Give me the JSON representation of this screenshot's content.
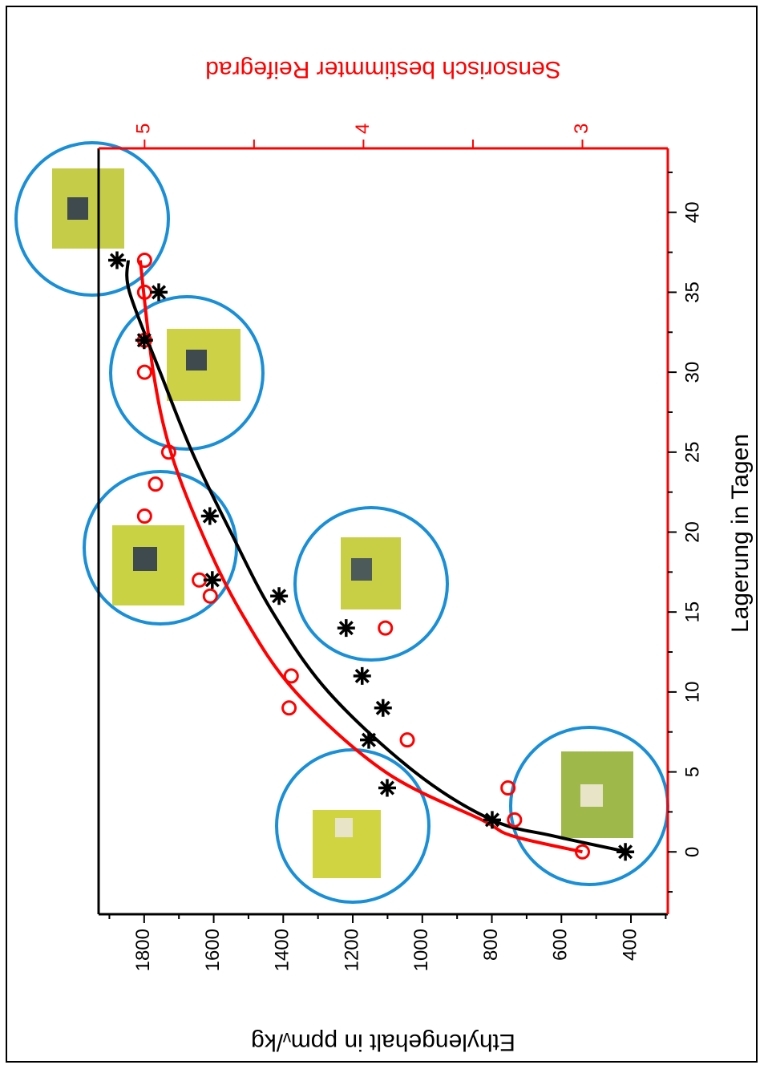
{
  "chart_data": {
    "type": "scatter",
    "x_label": "Lagerung in Tagen",
    "y_label": "Ethylengehalt in ppmᵥ/kg",
    "y2_label": "Sensorisch bestimmter Reifegrad",
    "xlim": [
      -3.9,
      44
    ],
    "xticks": [
      0,
      5,
      10,
      15,
      20,
      25,
      30,
      35,
      40
    ],
    "ylim": [
      294,
      1931
    ],
    "yticks": [
      400,
      600,
      800,
      1000,
      1200,
      1400,
      1600,
      1800
    ],
    "y2lim": [
      2.61,
      5.21
    ],
    "y2ticks": [
      3,
      4,
      5
    ],
    "series": [
      {
        "type": "line",
        "color": "#ff0000",
        "axis": "y2",
        "x": [
          0,
          1,
          2,
          5,
          10,
          15,
          20,
          25,
          30,
          37
        ],
        "values": [
          3.0,
          3.32,
          3.46,
          3.9,
          4.31,
          4.56,
          4.74,
          4.88,
          4.96,
          5.02
        ]
      },
      {
        "type": "line",
        "color": "#000000",
        "x": [
          0,
          1,
          2,
          5,
          10,
          15,
          20,
          25,
          30,
          35,
          37
        ],
        "values": [
          410,
          624,
          800,
          1022,
          1270,
          1431,
          1551,
          1662,
          1754,
          1842,
          1846
        ]
      },
      {
        "type": "scatter",
        "marker": "circle",
        "color": "#ff0000",
        "axis": "y2",
        "x": [
          0,
          2,
          4,
          7,
          9,
          11,
          14,
          16,
          17,
          21,
          23,
          25,
          30,
          32,
          35,
          37
        ],
        "values": [
          3.0,
          3.31,
          3.34,
          3.8,
          4.34,
          4.33,
          3.9,
          4.7,
          4.75,
          5.0,
          4.95,
          4.89,
          5.0,
          5.0,
          5.0,
          5.0
        ]
      },
      {
        "type": "scatter",
        "marker": "star",
        "color": "#000000",
        "x": [
          0,
          2,
          4,
          7,
          9,
          11,
          14,
          16,
          17,
          21,
          32,
          35,
          37
        ],
        "values": [
          416,
          799,
          1101,
          1154,
          1113,
          1173,
          1219,
          1412,
          1604,
          1611,
          1800,
          1758,
          1878
        ]
      }
    ]
  }
}
